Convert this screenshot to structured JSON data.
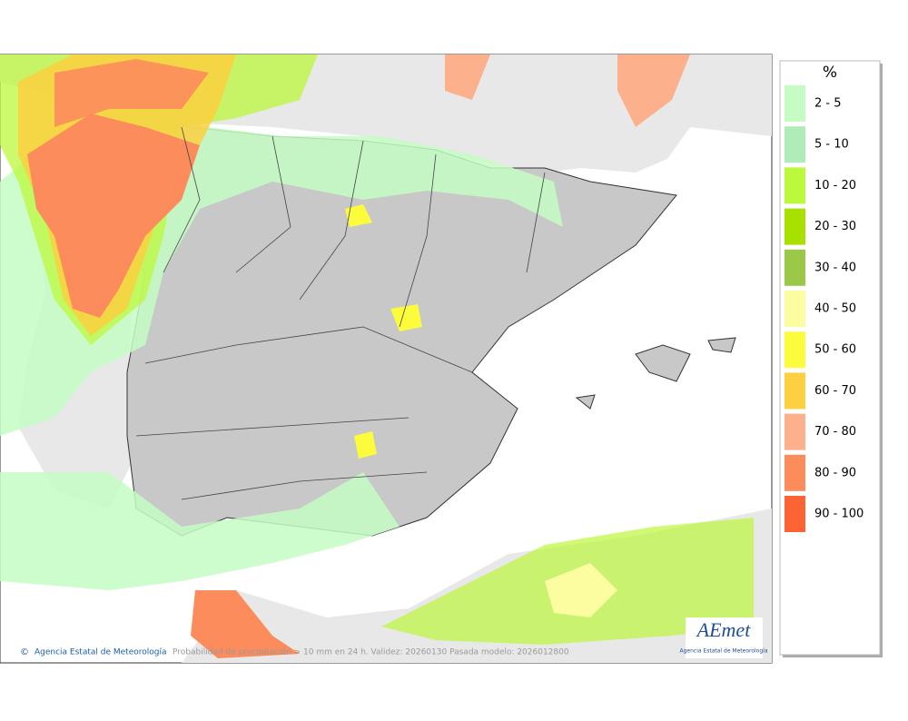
{
  "legend": {
    "title": "%",
    "items": [
      {
        "label": "2 - 5",
        "color": "#c4fcc4"
      },
      {
        "label": "5 - 10",
        "color": "#b0ecb8"
      },
      {
        "label": "10 - 20",
        "color": "#bcf83c"
      },
      {
        "label": "20 - 30",
        "color": "#a8e000"
      },
      {
        "label": "30 - 40",
        "color": "#9cc848"
      },
      {
        "label": "40 - 50",
        "color": "#fcfca0"
      },
      {
        "label": "50 - 60",
        "color": "#fcfc3c"
      },
      {
        "label": "60 - 70",
        "color": "#fcd040"
      },
      {
        "label": "70 - 80",
        "color": "#fcb08c"
      },
      {
        "label": "80 - 90",
        "color": "#fc8c5c"
      },
      {
        "label": "90 - 100",
        "color": "#fc6434"
      }
    ]
  },
  "footer": {
    "credit": "Agencia Estatal de Meteorología",
    "caption": "Probabilidad de precipitación > 10 mm en 24 h. Validez: 20260130 Pasada modelo: 2026012800"
  },
  "logo": {
    "brand": "AEmet",
    "subtitle": "Agencia Estatal de Meteorología"
  }
}
